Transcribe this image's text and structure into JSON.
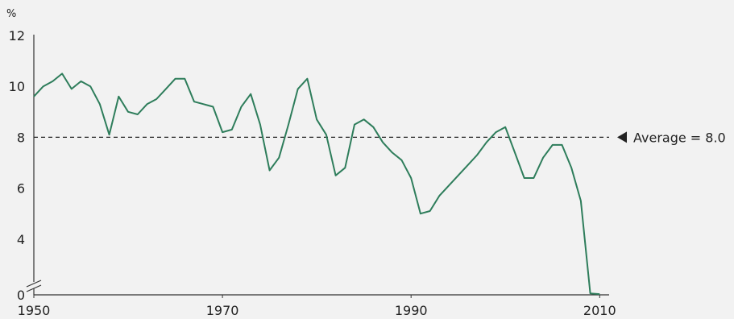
{
  "chart_data": {
    "type": "line",
    "ylabel": "%",
    "ylim": [
      0,
      12
    ],
    "xlim": [
      1950,
      2011
    ],
    "y_ticks": [
      "0",
      "4",
      "6",
      "8",
      "10",
      "12"
    ],
    "x_ticks": [
      "1950",
      "1970",
      "1990",
      "2010"
    ],
    "axis_break": true,
    "grid": false,
    "colors": {
      "series": "#2e7d5b",
      "axis": "#333333",
      "reference": "#222222"
    },
    "reference_line": {
      "value": 8.0,
      "label": "Average = 8.0"
    },
    "series": [
      {
        "x": [
          1950,
          1951,
          1952,
          1953,
          1954,
          1955,
          1956,
          1957,
          1958,
          1959,
          1960,
          1961,
          1962,
          1963,
          1964,
          1965,
          1966,
          1967,
          1968,
          1969,
          1970,
          1971,
          1972,
          1973,
          1974,
          1975,
          1976,
          1977,
          1978,
          1979,
          1980,
          1981,
          1982,
          1983,
          1984,
          1985,
          1986,
          1987,
          1988,
          1989,
          1990,
          1991,
          1992,
          1993,
          1994,
          1995,
          1996,
          1997,
          1998,
          1999,
          2000,
          2001,
          2002,
          2003,
          2004,
          2005,
          2006,
          2007,
          2008,
          2009,
          2010
        ],
        "y": [
          9.6,
          10.0,
          10.2,
          10.5,
          9.9,
          10.2,
          10.0,
          9.3,
          8.1,
          9.6,
          9.0,
          8.9,
          9.3,
          9.5,
          9.9,
          10.3,
          10.3,
          9.4,
          9.3,
          9.2,
          8.2,
          8.3,
          9.2,
          9.7,
          8.5,
          6.7,
          7.2,
          8.5,
          9.9,
          10.3,
          8.7,
          8.1,
          6.5,
          6.8,
          8.5,
          8.7,
          8.4,
          7.8,
          7.4,
          7.1,
          6.4,
          5.0,
          5.1,
          5.7,
          6.1,
          6.5,
          6.9,
          7.3,
          7.8,
          8.2,
          8.4,
          7.4,
          6.4,
          6.4,
          7.2,
          7.7,
          7.7,
          6.8,
          5.5,
          0.6,
          0.3
        ]
      }
    ]
  }
}
